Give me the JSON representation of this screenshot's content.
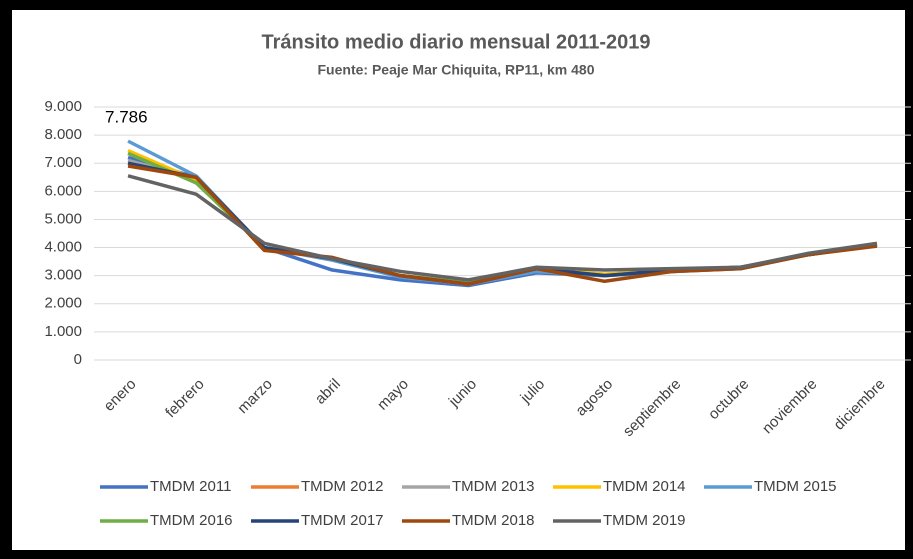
{
  "chart_data": {
    "type": "line",
    "title": "Tránsito medio diario mensual 2011-2019",
    "subtitle": "Fuente: Peaje Mar Chiquita, RP11, km 480",
    "categories": [
      "enero",
      "febrero",
      "marzo",
      "abril",
      "mayo",
      "junio",
      "julio",
      "agosto",
      "septiembre",
      "octubre",
      "noviembre",
      "diciembre"
    ],
    "ylim": [
      0,
      9000
    ],
    "yticks": [
      0,
      {
        "value": 1000,
        "label": "1.000"
      },
      {
        "value": 2000,
        "label": "2.000"
      },
      {
        "value": 3000,
        "label": "3.000"
      },
      {
        "value": 4000,
        "label": "4.000"
      },
      {
        "value": 5000,
        "label": "5.000"
      },
      {
        "value": 6000,
        "label": "6.000"
      },
      {
        "value": 7000,
        "label": "7.000"
      },
      {
        "value": 8000,
        "label": "8.000"
      },
      {
        "value": 9000,
        "label": "9.000"
      }
    ],
    "grid": true,
    "legend": "bottom",
    "series": [
      {
        "name": "TMDM 2011",
        "color": "#4472c4",
        "values": [
          7200,
          6500,
          4000,
          3200,
          2850,
          2650,
          3100,
          3000,
          3150,
          3250,
          3750,
          4100
        ]
      },
      {
        "name": "TMDM 2012",
        "color": "#ed7d31",
        "values": [
          7000,
          6500,
          4000,
          3600,
          3000,
          2700,
          3200,
          3000,
          3200,
          3300,
          3750,
          4100
        ]
      },
      {
        "name": "TMDM 2013",
        "color": "#a5a5a5",
        "values": [
          7100,
          6450,
          4000,
          3600,
          3000,
          2750,
          3200,
          3050,
          3150,
          3300,
          3750,
          4100
        ]
      },
      {
        "name": "TMDM 2014",
        "color": "#ffc000",
        "values": [
          7450,
          6400,
          4000,
          3600,
          3000,
          2750,
          3250,
          3050,
          3200,
          3300,
          3750,
          4100
        ]
      },
      {
        "name": "TMDM 2015",
        "color": "#5b9bd5",
        "values": [
          7786,
          6550,
          4000,
          3550,
          2950,
          2700,
          3150,
          3000,
          3150,
          3300,
          3750,
          4100
        ],
        "value_labels": [
          "7.786",
          null,
          null,
          null,
          null,
          null,
          null,
          null,
          null,
          null,
          null,
          null
        ]
      },
      {
        "name": "TMDM 2016",
        "color": "#70ad47",
        "values": [
          7350,
          6300,
          4000,
          3600,
          3000,
          2750,
          3250,
          3000,
          3200,
          3300,
          3750,
          4100
        ]
      },
      {
        "name": "TMDM 2017",
        "color": "#264478",
        "values": [
          7000,
          6500,
          4000,
          3600,
          3000,
          2700,
          3250,
          3000,
          3200,
          3300,
          3750,
          4100
        ]
      },
      {
        "name": "TMDM 2018",
        "color": "#9e480e",
        "values": [
          6900,
          6500,
          3900,
          3650,
          3000,
          2700,
          3250,
          2800,
          3150,
          3250,
          3750,
          4050
        ]
      },
      {
        "name": "TMDM 2019",
        "color": "#636363",
        "values": [
          6550,
          5900,
          4150,
          3600,
          3150,
          2850,
          3300,
          3200,
          3250,
          3300,
          3800,
          4150
        ]
      }
    ]
  }
}
